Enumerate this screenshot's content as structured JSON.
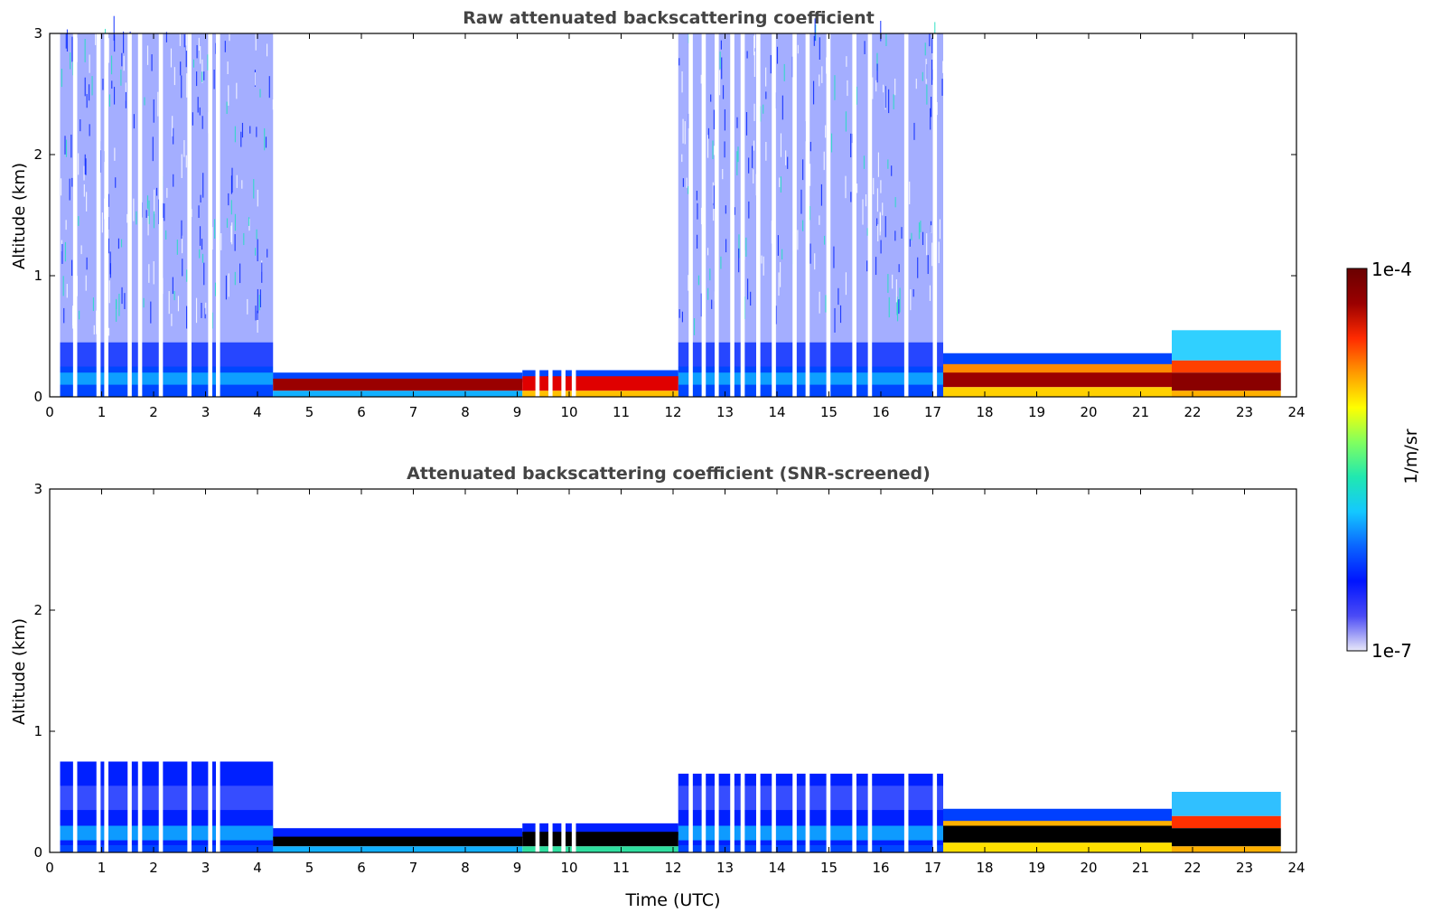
{
  "chart_data": [
    {
      "type": "heatmap",
      "title": "Raw attenuated backscattering coefficient",
      "xlabel": "",
      "ylabel": "Altitude (km)",
      "xlim": [
        0,
        24
      ],
      "ylim": [
        0,
        3
      ],
      "xticks": [
        "0",
        "1",
        "2",
        "3",
        "4",
        "5",
        "6",
        "7",
        "8",
        "9",
        "10",
        "11",
        "12",
        "13",
        "14",
        "15",
        "16",
        "17",
        "18",
        "19",
        "20",
        "21",
        "22",
        "23",
        "24"
      ],
      "yticks": [
        "0",
        "1",
        "2",
        "3"
      ],
      "screened": false,
      "regions": [
        {
          "name": "night-noisy",
          "x_range": [
            0.2,
            4.3
          ],
          "signal_top_km": 3.0,
          "near_surface_layer_km": [
            0,
            0.25
          ]
        },
        {
          "name": "stable-layer",
          "x_range": [
            4.3,
            9.1
          ],
          "layer_km": [
            0.05,
            0.15
          ],
          "top_km": 0.2
        },
        {
          "name": "gapped-layer",
          "x_range": [
            9.1,
            12.1
          ],
          "layer_km": [
            0.05,
            0.17
          ]
        },
        {
          "name": "day-noisy",
          "x_range": [
            12.1,
            17.2
          ],
          "signal_top_km": 3.0
        },
        {
          "name": "evening-layer",
          "x_range": [
            17.2,
            21.6
          ],
          "layer_km": [
            0.08,
            0.3
          ]
        },
        {
          "name": "late-plume",
          "x_range": [
            21.6,
            23.7
          ],
          "top_km": 0.55
        }
      ],
      "data_gaps_utc": [
        0.45,
        0.9,
        1.05,
        1.5,
        1.7,
        2.1,
        2.65,
        3.05,
        3.2,
        9.35,
        9.6,
        9.85,
        10.05,
        12.3,
        12.55,
        12.8,
        13.1,
        13.3,
        13.6,
        13.9,
        14.3,
        14.55,
        14.95,
        15.45,
        15.75,
        16.45,
        17.0
      ]
    },
    {
      "type": "heatmap",
      "title": "Attenuated backscattering coefficient (SNR-screened)",
      "xlabel": "Time (UTC)",
      "ylabel": "Altitude (km)",
      "xlim": [
        0,
        24
      ],
      "ylim": [
        0,
        3
      ],
      "xticks": [
        "0",
        "1",
        "2",
        "3",
        "4",
        "5",
        "6",
        "7",
        "8",
        "9",
        "10",
        "11",
        "12",
        "13",
        "14",
        "15",
        "16",
        "17",
        "18",
        "19",
        "20",
        "21",
        "22",
        "23",
        "24"
      ],
      "yticks": [
        "0",
        "1",
        "2",
        "3"
      ],
      "screened": true,
      "regions": [
        {
          "name": "night-layer",
          "x_range": [
            0.2,
            4.3
          ],
          "top_km": 0.75
        },
        {
          "name": "stable-layer",
          "x_range": [
            4.3,
            9.1
          ],
          "layer_km": [
            0.05,
            0.13
          ],
          "top_km": 0.2
        },
        {
          "name": "gapped-layer",
          "x_range": [
            9.1,
            12.1
          ],
          "layer_km": [
            0.05,
            0.17
          ]
        },
        {
          "name": "day-layer",
          "x_range": [
            12.1,
            17.2
          ],
          "top_km": 0.65
        },
        {
          "name": "evening-layer",
          "x_range": [
            17.2,
            21.6
          ],
          "layer_km": [
            0.08,
            0.3
          ]
        },
        {
          "name": "late-plume",
          "x_range": [
            21.6,
            23.7
          ],
          "top_km": 0.5
        }
      ],
      "data_gaps_utc": [
        0.45,
        0.9,
        1.05,
        1.5,
        1.7,
        2.1,
        2.65,
        3.05,
        3.2,
        9.35,
        9.6,
        9.85,
        10.05,
        12.3,
        12.55,
        12.8,
        13.1,
        13.3,
        13.6,
        13.9,
        14.3,
        14.55,
        14.95,
        15.45,
        15.75,
        16.45,
        17.0
      ]
    }
  ],
  "colorbar": {
    "label": "1/m/sr",
    "max_label": "1e-4",
    "min_label": "1e-7",
    "scale": "log",
    "range": [
      1e-07,
      0.0001
    ],
    "colors": [
      "#e8e8f8",
      "#4b4bf5",
      "#0014ff",
      "#0a64ff",
      "#14c8ff",
      "#20e8b0",
      "#80ff60",
      "#ffff00",
      "#ff9a00",
      "#ff2a00",
      "#9a0000",
      "#6a0000"
    ]
  }
}
